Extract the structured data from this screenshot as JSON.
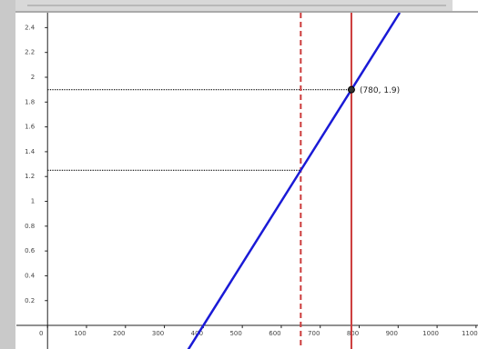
{
  "chart_data": {
    "type": "line",
    "x": [
      357,
      400,
      650,
      780,
      904
    ],
    "series": [
      {
        "color": "#1a1ad6",
        "values": [
          -0.215,
          0,
          1.25,
          1.9,
          2.52
        ]
      }
    ],
    "xlim": [
      -80,
      1105
    ],
    "ylim": [
      -0.19,
      2.52
    ],
    "xticks": [
      0,
      100,
      200,
      300,
      400,
      500,
      600,
      700,
      800,
      900,
      1000,
      1100
    ],
    "yticks": [
      0.2,
      0.4,
      0.6,
      0.8,
      1,
      1.2,
      1.4,
      1.6,
      1.8,
      2,
      2.2,
      2.4
    ],
    "vlines": [
      {
        "x": 780,
        "color": "#cc3b3b",
        "style": "solid"
      },
      {
        "x": 650,
        "color": "#cc3b3b",
        "style": "dashed"
      }
    ],
    "hlines": [
      {
        "y": 1.9,
        "x_end": 780
      },
      {
        "y": 1.25,
        "x_end": 650
      }
    ],
    "point": {
      "x": 780,
      "y": 1.9,
      "label": "(780, 1.9)"
    }
  }
}
